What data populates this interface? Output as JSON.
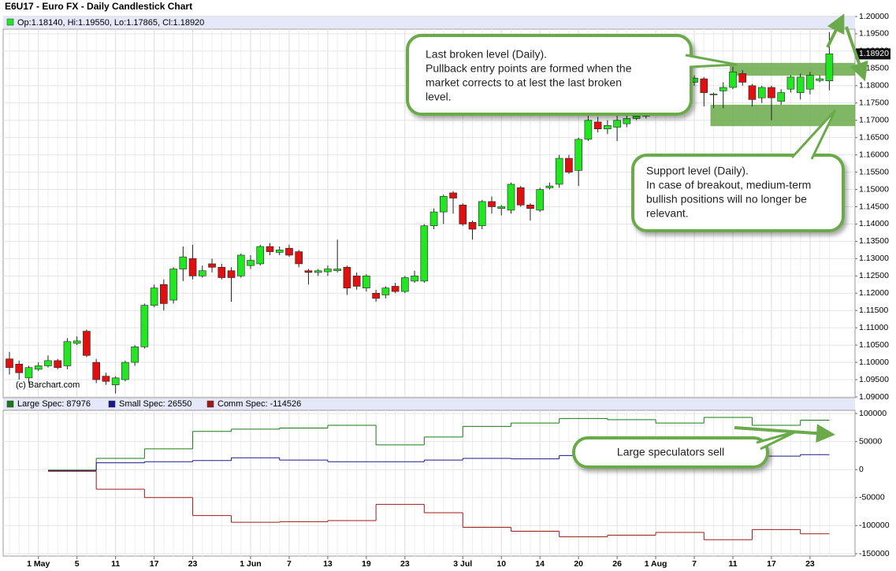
{
  "chart_data": {
    "type": "candlestick",
    "title": "E6U17 - Euro FX - Daily Candlestick Chart",
    "info": "Op:1.18140, Hi:1.19550, Lo:1.17865, Cl:1.18920",
    "credit": "(c) Barchart.com",
    "up_color": "#22e622",
    "down_color": "#e01010",
    "categories": [
      null,
      null,
      null,
      "1 May",
      null,
      null,
      null,
      "5",
      null,
      null,
      null,
      "11",
      null,
      null,
      null,
      "17",
      null,
      null,
      null,
      "23",
      null,
      null,
      null,
      null,
      null,
      "1 Jun",
      null,
      null,
      null,
      "7",
      null,
      null,
      null,
      "13",
      null,
      null,
      null,
      "19",
      null,
      null,
      null,
      "23",
      null,
      null,
      null,
      null,
      null,
      "3 Jul",
      null,
      null,
      null,
      "10",
      null,
      null,
      null,
      "14",
      null,
      null,
      null,
      "20",
      null,
      null,
      null,
      "26",
      null,
      null,
      null,
      "1 Aug",
      null,
      null,
      null,
      "7",
      null,
      null,
      null,
      "11",
      null,
      null,
      null,
      "17",
      null,
      null,
      null,
      "23",
      null,
      null
    ],
    "open": [
      1.101,
      1.0995,
      1.0955,
      1.098,
      1.099,
      1.1005,
      1.099,
      1.1055,
      1.109,
      1.1,
      1.096,
      1.0935,
      1.095,
      1.1,
      1.1045,
      1.1165,
      1.1225,
      1.118,
      1.127,
      1.13,
      1.125,
      1.1285,
      1.1275,
      1.1265,
      1.125,
      1.128,
      1.1285,
      1.1335,
      1.1318,
      1.133,
      1.132,
      1.1265,
      1.126,
      1.1262,
      1.1265,
      1.1275,
      1.125,
      1.1215,
      1.12,
      1.1195,
      1.122,
      1.1205,
      1.1235,
      1.1235,
      1.1395,
      1.1435,
      1.149,
      1.1455,
      1.1405,
      1.1395,
      1.1465,
      1.1445,
      1.144,
      1.1505,
      1.1455,
      1.144,
      1.1505,
      1.1515,
      1.159,
      1.1555,
      1.1645,
      1.1695,
      1.1675,
      1.168,
      1.169,
      1.1705,
      1.1712,
      1.176,
      1.181,
      1.1785,
      1.183,
      1.181,
      1.182,
      1.1775,
      1.1785,
      1.1795,
      1.1835,
      1.18,
      1.1765,
      1.1795,
      1.1755,
      1.179,
      1.178,
      1.179,
      1.1815,
      1.1814
    ],
    "high": [
      1.103,
      1.1005,
      1.099,
      1.1,
      1.102,
      1.101,
      1.107,
      1.1075,
      1.1095,
      1.101,
      1.097,
      1.096,
      1.1005,
      1.105,
      1.117,
      1.1225,
      1.124,
      1.1275,
      1.1335,
      1.134,
      1.128,
      1.13,
      1.1285,
      1.1275,
      1.1315,
      1.131,
      1.134,
      1.1345,
      1.1335,
      1.134,
      1.1325,
      1.127,
      1.127,
      1.128,
      1.1355,
      1.128,
      1.126,
      1.1255,
      1.121,
      1.122,
      1.123,
      1.125,
      1.1265,
      1.14,
      1.1445,
      1.1485,
      1.1495,
      1.146,
      1.141,
      1.147,
      1.148,
      1.1455,
      1.152,
      1.151,
      1.146,
      1.1505,
      1.152,
      1.16,
      1.16,
      1.165,
      1.1725,
      1.171,
      1.17,
      1.172,
      1.1715,
      1.1718,
      1.1765,
      1.181,
      1.1815,
      1.1835,
      1.184,
      1.183,
      1.1825,
      1.178,
      1.181,
      1.1855,
      1.1845,
      1.1805,
      1.18,
      1.18,
      1.179,
      1.183,
      1.1835,
      1.184,
      1.183,
      1.1955
    ],
    "low": [
      1.0965,
      1.095,
      1.094,
      1.0975,
      1.0985,
      1.098,
      1.098,
      1.105,
      1.1015,
      1.094,
      1.0935,
      1.091,
      1.0945,
      1.099,
      1.104,
      1.116,
      1.115,
      1.117,
      1.1235,
      1.124,
      1.1245,
      1.126,
      1.124,
      1.1175,
      1.1245,
      1.127,
      1.128,
      1.131,
      1.131,
      1.1305,
      1.1275,
      1.1225,
      1.125,
      1.125,
      1.126,
      1.1195,
      1.121,
      1.1205,
      1.1175,
      1.1185,
      1.12,
      1.12,
      1.123,
      1.123,
      1.1385,
      1.14,
      1.143,
      1.1395,
      1.1355,
      1.1385,
      1.143,
      1.1425,
      1.143,
      1.145,
      1.141,
      1.1435,
      1.15,
      1.1505,
      1.1545,
      1.151,
      1.164,
      1.1665,
      1.166,
      1.164,
      1.168,
      1.17,
      1.1705,
      1.175,
      1.178,
      1.178,
      1.181,
      1.18,
      1.174,
      1.1735,
      1.1735,
      1.179,
      1.18,
      1.174,
      1.175,
      1.17,
      1.1745,
      1.178,
      1.176,
      1.1775,
      1.181,
      1.17865
    ],
    "close": [
      1.0985,
      1.097,
      1.0985,
      1.099,
      1.1005,
      1.0985,
      1.106,
      1.1062,
      1.102,
      1.095,
      1.0945,
      1.0955,
      1.1,
      1.1045,
      1.1165,
      1.1215,
      1.117,
      1.127,
      1.1305,
      1.125,
      1.1265,
      1.1275,
      1.1245,
      1.1245,
      1.131,
      1.1295,
      1.1335,
      1.132,
      1.1325,
      1.131,
      1.1285,
      1.126,
      1.1265,
      1.127,
      1.127,
      1.1215,
      1.122,
      1.125,
      1.1185,
      1.1215,
      1.1205,
      1.1245,
      1.125,
      1.1395,
      1.1435,
      1.148,
      1.1475,
      1.14,
      1.1385,
      1.1465,
      1.145,
      1.145,
      1.1515,
      1.1455,
      1.1445,
      1.15,
      1.151,
      1.159,
      1.155,
      1.1645,
      1.17,
      1.1675,
      1.1685,
      1.17,
      1.1705,
      1.1712,
      1.176,
      1.18,
      1.1785,
      1.183,
      1.1815,
      1.1822,
      1.178,
      1.1776,
      1.1795,
      1.184,
      1.181,
      1.176,
      1.1795,
      1.1765,
      1.178,
      1.1825,
      1.1825,
      1.183,
      1.182,
      1.1892
    ],
    "ylim": [
      1.09,
      1.2
    ],
    "yticks": [
      {
        "value": 1.09,
        "label": "1.09000"
      },
      {
        "value": 1.095,
        "label": "1.09500"
      },
      {
        "value": 1.1,
        "label": "1.10000"
      },
      {
        "value": 1.105,
        "label": "1.10500"
      },
      {
        "value": 1.11,
        "label": "1.11000"
      },
      {
        "value": 1.115,
        "label": "1.11500"
      },
      {
        "value": 1.12,
        "label": "1.12000"
      },
      {
        "value": 1.125,
        "label": "1.12500"
      },
      {
        "value": 1.13,
        "label": "1.13000"
      },
      {
        "value": 1.135,
        "label": "1.13500"
      },
      {
        "value": 1.14,
        "label": "1.14000"
      },
      {
        "value": 1.145,
        "label": "1.14500"
      },
      {
        "value": 1.15,
        "label": "1.15000"
      },
      {
        "value": 1.155,
        "label": "1.15500"
      },
      {
        "value": 1.16,
        "label": "1.16000"
      },
      {
        "value": 1.165,
        "label": "1.16500"
      },
      {
        "value": 1.17,
        "label": "1.17000"
      },
      {
        "value": 1.175,
        "label": "1.17500"
      },
      {
        "value": 1.18,
        "label": "1.18000"
      },
      {
        "value": 1.185,
        "label": "1.18500"
      },
      {
        "value": 1.19,
        "label": "1.19000"
      },
      {
        "value": 1.195,
        "label": "1.19500"
      },
      {
        "value": 1.2,
        "label": "1.20000"
      }
    ],
    "last_price": {
      "value": 1.1892,
      "label": "1.18920"
    },
    "zones": [
      {
        "low": 1.1829,
        "high": 1.1866,
        "start": 75
      },
      {
        "low": 1.1683,
        "high": 1.1745,
        "start": 73
      }
    ],
    "zone_color": "#6aaa4a",
    "cot": {
      "type": "step",
      "x": [
        4,
        9,
        14,
        19,
        23,
        28,
        33,
        38,
        43,
        47,
        52,
        57,
        62,
        67,
        72,
        77,
        82
      ],
      "ylim": [
        -150000,
        100000
      ],
      "yticks": [
        100000,
        50000,
        0,
        -50000,
        -100000,
        -150000
      ],
      "legend": [
        "Large Spec: 87976",
        "Small Spec: 26550",
        "Comm Spec: -114526"
      ],
      "series": [
        {
          "name": "Large Spec",
          "color": "#1a7a1a",
          "values": [
            -1000,
            20000,
            37000,
            68000,
            72000,
            74000,
            79000,
            44000,
            58000,
            77000,
            83000,
            91000,
            89000,
            83000,
            93000,
            79000,
            87976
          ]
        },
        {
          "name": "Small Spec",
          "color": "#1a1a8a",
          "values": [
            -2000,
            12000,
            14000,
            16000,
            21000,
            17000,
            14000,
            14000,
            17000,
            20000,
            19000,
            25000,
            21000,
            22000,
            23000,
            24000,
            26550
          ]
        },
        {
          "name": "Comm Spec",
          "color": "#a01a1a",
          "values": [
            -3000,
            -35000,
            -50000,
            -82000,
            -94000,
            -93000,
            -91000,
            -62000,
            -77000,
            -103000,
            -110000,
            -120000,
            -117000,
            -112000,
            -125000,
            -107000,
            -114526
          ]
        }
      ]
    },
    "callouts": [
      {
        "lines": [
          "Last broken level (Daily).",
          "Pullback entry points are formed when the",
          "market corrects to at lest the last broken",
          "level."
        ]
      },
      {
        "lines": [
          "Support level (Daily).",
          "In case of breakout, medium-term",
          "bullish positions will no longer be",
          "relevant."
        ]
      },
      {
        "lines": [
          "Large speculators sell"
        ]
      }
    ]
  }
}
